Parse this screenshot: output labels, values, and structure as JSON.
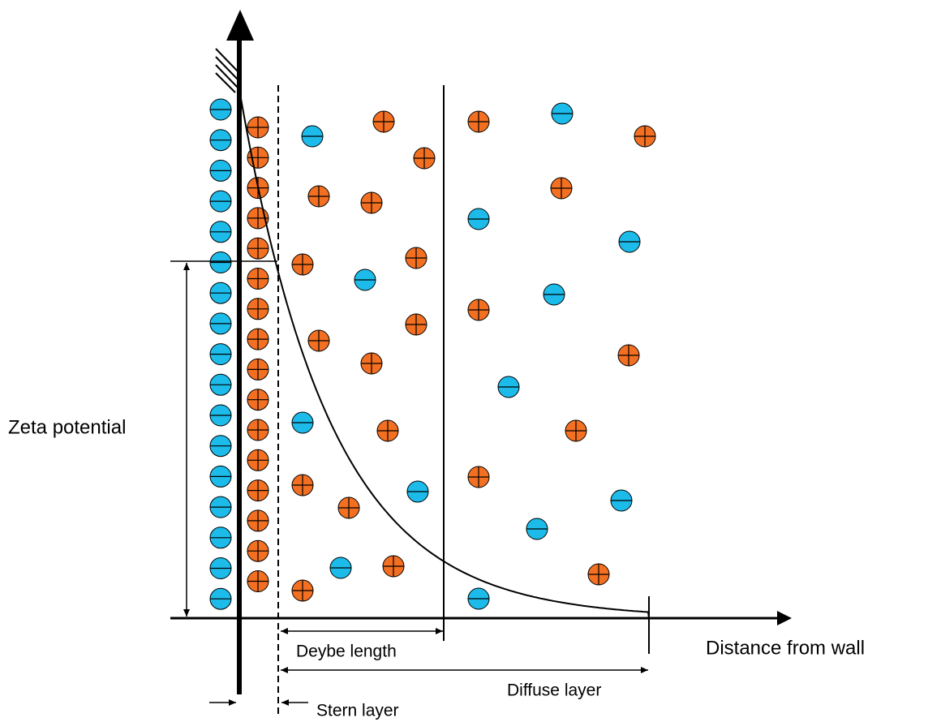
{
  "labels": {
    "zeta_potential": "Zeta potential",
    "distance_from_wall": "Distance from wall",
    "debye_length": "Deybe length",
    "diffuse_layer": "Diffuse layer",
    "stern_layer": "Stern layer"
  }
}
